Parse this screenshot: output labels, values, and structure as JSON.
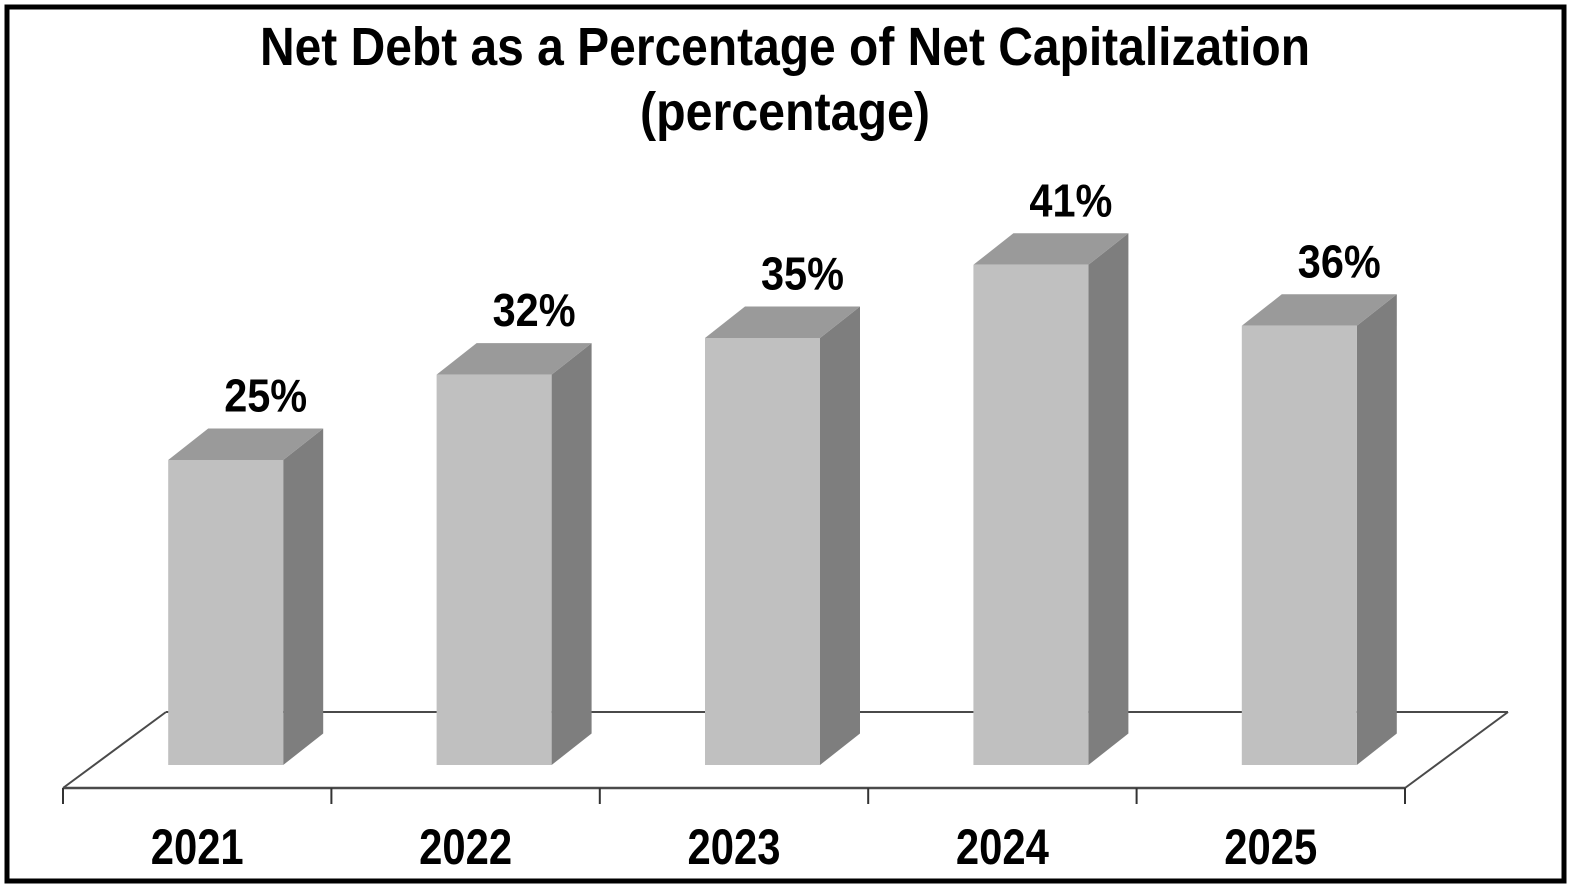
{
  "chart_data": {
    "type": "bar",
    "style": "3d-column",
    "title": "Net Debt as a Percentage of Net Capitalization",
    "subtitle": "(percentage)",
    "categories": [
      "2021",
      "2022",
      "2023",
      "2024",
      "2025"
    ],
    "values": [
      25,
      32,
      35,
      41,
      36
    ],
    "value_labels": [
      "25%",
      "32%",
      "35%",
      "41%",
      "36%"
    ],
    "xlabel": "",
    "ylabel": "",
    "ylim": [
      0,
      45
    ],
    "grid": false,
    "legend": false,
    "colors": {
      "bar_front": "#c0c0c0",
      "bar_top": "#9a9a9a",
      "bar_side": "#7e7e7e",
      "axis_line": "#4a4a4a",
      "tick": "#333333",
      "text": "#000000",
      "background": "#ffffff",
      "border": "#000000"
    }
  }
}
